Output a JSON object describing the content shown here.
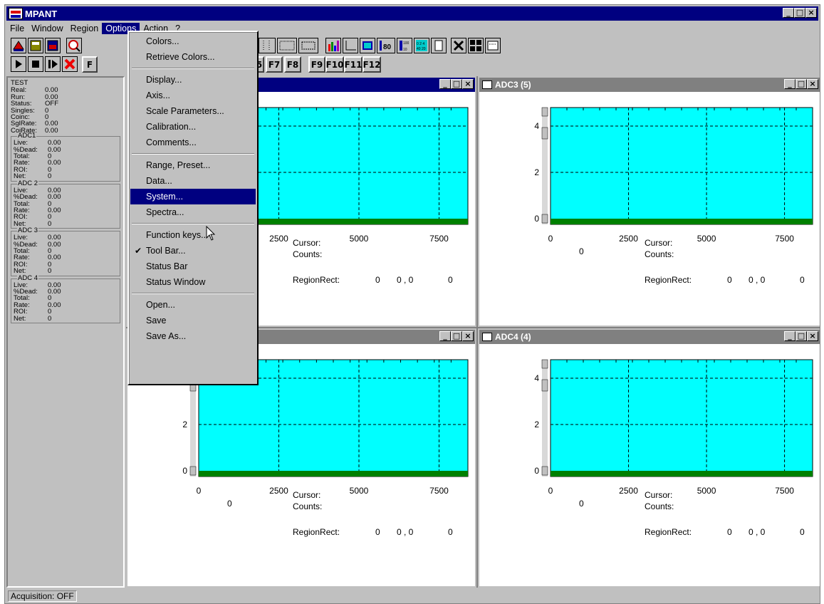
{
  "app": {
    "title": "MPANT"
  },
  "menubar": [
    "File",
    "Window",
    "Region",
    "Options",
    "Action",
    "?"
  ],
  "toolbar": {
    "fkeys_a": [
      "F7",
      "F8"
    ],
    "fkeys_b": [
      "F9",
      "F10",
      "F11",
      "F12"
    ],
    "partial_f5": "5",
    "partial_f": "F"
  },
  "options_menu": {
    "items": [
      "Colors...",
      "Retrieve Colors...",
      "Display...",
      "Axis...",
      "Scale Parameters...",
      "Calibration...",
      "Comments...",
      "Range, Preset...",
      "Data...",
      "System...",
      "Spectra...",
      "Function keys...",
      "Tool Bar...",
      "Status Bar",
      "Status Window",
      "Open...",
      "Save",
      "Save As..."
    ],
    "highlighted": "System...",
    "checked": "Tool Bar..."
  },
  "status_panel": {
    "title": "TEST",
    "rows": [
      [
        "Real:",
        "0.00"
      ],
      [
        "Run:",
        "0.00"
      ],
      [
        "Status:",
        "OFF"
      ],
      [
        "Singles:",
        "0"
      ],
      [
        "Coinc:",
        "0"
      ],
      [
        "SglRate:",
        "0.00"
      ],
      [
        "CoiRate:",
        "0.00"
      ]
    ],
    "adc": [
      {
        "name": "ADC1",
        "rows": [
          [
            "Live:",
            "0.00"
          ],
          [
            "%Dead:",
            "0.00"
          ],
          [
            "Total:",
            "0"
          ],
          [
            "Rate:",
            "0.00"
          ],
          [
            "ROI:",
            "0"
          ],
          [
            "Net:",
            "0"
          ]
        ]
      },
      {
        "name": "ADC 2",
        "rows": [
          [
            "Live:",
            "0.00"
          ],
          [
            "%Dead:",
            "0.00"
          ],
          [
            "Total:",
            "0"
          ],
          [
            "Rate:",
            "0.00"
          ],
          [
            "ROI:",
            "0"
          ],
          [
            "Net:",
            "0"
          ]
        ]
      },
      {
        "name": "ADC 3",
        "rows": [
          [
            "Live:",
            "0.00"
          ],
          [
            "%Dead:",
            "0.00"
          ],
          [
            "Total:",
            "0"
          ],
          [
            "Rate:",
            "0.00"
          ],
          [
            "ROI:",
            "0"
          ],
          [
            "Net:",
            "0"
          ]
        ]
      },
      {
        "name": "ADC 4",
        "rows": [
          [
            "Live:",
            "0.00"
          ],
          [
            "%Dead:",
            "0.00"
          ],
          [
            "Total:",
            "0"
          ],
          [
            "Rate:",
            "0.00"
          ],
          [
            "ROI:",
            "0"
          ],
          [
            "Net:",
            "0"
          ]
        ]
      }
    ]
  },
  "windows": {
    "w_adc3": {
      "title": "ADC3 (5)"
    },
    "w_adc4": {
      "title": "ADC4 (4)"
    },
    "x_ticks": [
      "0",
      "2500",
      "5000",
      "7500"
    ],
    "y_ticks": [
      "4",
      "2",
      "0"
    ],
    "cursor_label": "Cursor:",
    "cursor_value": "0",
    "counts_label": "Counts:",
    "region_label": "RegionRect:",
    "region_values": [
      "0",
      "0 , 0",
      "0"
    ]
  },
  "statusbar": {
    "acquisition": "Acquisition: OFF"
  },
  "colors": {
    "plot_bg": "#00ffff",
    "baseline": "#008000",
    "title_active": "#000080",
    "title_inactive": "#808080"
  }
}
